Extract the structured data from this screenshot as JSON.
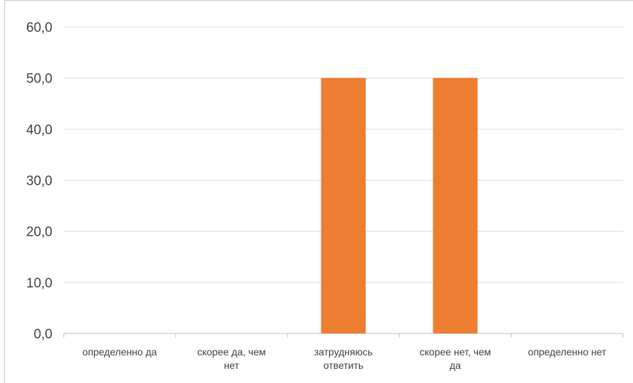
{
  "chart_data": {
    "type": "bar",
    "title": "",
    "xlabel": "",
    "ylabel": "",
    "categories": [
      [
        "определенно да"
      ],
      [
        "скорее да, чем",
        "нет"
      ],
      [
        "затрудняюсь",
        "ответить"
      ],
      [
        "скорее нет, чем",
        "да"
      ],
      [
        "определенно нет"
      ]
    ],
    "values": [
      0,
      0,
      50,
      50,
      0
    ],
    "ylim": [
      0,
      60
    ],
    "yticks": [
      "0,0",
      "10,0",
      "20,0",
      "30,0",
      "40,0",
      "50,0",
      "60,0"
    ],
    "bar_color": "#ED7D31",
    "grid": true
  }
}
